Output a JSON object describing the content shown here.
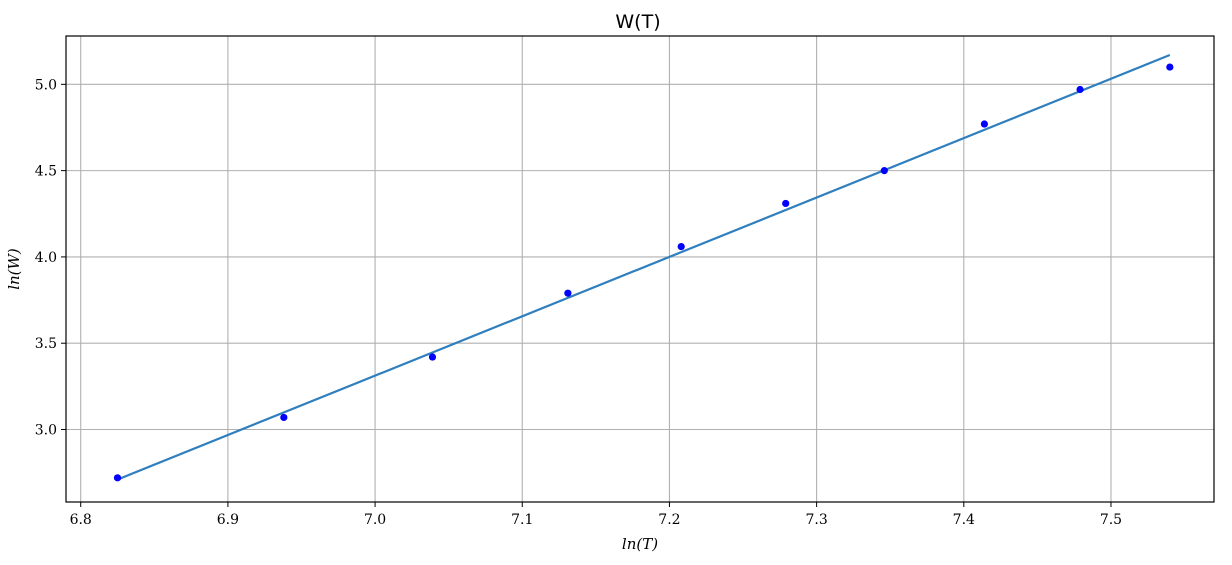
{
  "chart_data": {
    "type": "scatter",
    "title": "W(T)",
    "xlabel": "ln(T)",
    "ylabel": "ln(W)",
    "xlim": [
      6.79,
      7.57
    ],
    "ylim": [
      2.58,
      5.28
    ],
    "xticks": [
      6.8,
      6.9,
      7.0,
      7.1,
      7.2,
      7.3,
      7.4,
      7.5
    ],
    "xtick_labels": [
      "6.8",
      "6.9",
      "7.0",
      "7.1",
      "7.2",
      "7.3",
      "7.4",
      "7.5"
    ],
    "yticks": [
      3.0,
      3.5,
      4.0,
      4.5,
      5.0
    ],
    "ytick_labels": [
      "3.0",
      "3.5",
      "4.0",
      "4.5",
      "5.0"
    ],
    "grid": true,
    "points": {
      "x": [
        6.825,
        6.938,
        7.039,
        7.131,
        7.208,
        7.279,
        7.346,
        7.414,
        7.479,
        7.54
      ],
      "y": [
        2.72,
        3.07,
        3.42,
        3.79,
        4.06,
        4.31,
        4.5,
        4.77,
        4.97,
        5.1
      ],
      "color": "#0000ff"
    },
    "fit_line": {
      "x": [
        6.825,
        7.54
      ],
      "y": [
        2.71,
        5.17
      ],
      "color": "#2f7fbf"
    }
  }
}
